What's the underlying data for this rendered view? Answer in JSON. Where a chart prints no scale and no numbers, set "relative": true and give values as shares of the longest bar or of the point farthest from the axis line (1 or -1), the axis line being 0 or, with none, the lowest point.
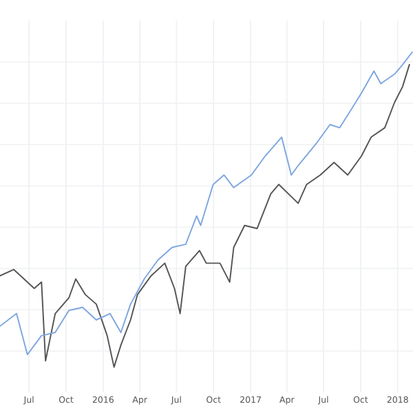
{
  "chart_data": {
    "type": "line",
    "relative": true,
    "grid": true,
    "legend": false,
    "tick_labels": "x",
    "xlim": [
      "2015-04-20",
      "2018-02-08"
    ],
    "xticks": [
      {
        "value": "2015-07-01",
        "label": "Jul"
      },
      {
        "value": "2015-10-01",
        "label": "Oct"
      },
      {
        "value": "2016-01-01",
        "label": "2016"
      },
      {
        "value": "2016-04-01",
        "label": "Apr"
      },
      {
        "value": "2016-07-01",
        "label": "Jul"
      },
      {
        "value": "2016-10-01",
        "label": "Oct"
      },
      {
        "value": "2017-01-01",
        "label": "2017"
      },
      {
        "value": "2017-04-01",
        "label": "Apr"
      },
      {
        "value": "2017-07-01",
        "label": "Jul"
      },
      {
        "value": "2017-10-01",
        "label": "Oct"
      },
      {
        "value": "2018-01-01",
        "label": "2018"
      }
    ],
    "series": [
      {
        "color": "#555555",
        "x": [
          "2015-04-20",
          "2015-05-24",
          "2015-07-14",
          "2015-08-01",
          "2015-08-11",
          "2015-09-04",
          "2015-10-08",
          "2015-10-25",
          "2015-11-18",
          "2015-12-15",
          "2016-01-11",
          "2016-01-28",
          "2016-02-14",
          "2016-03-09",
          "2016-03-26",
          "2016-04-29",
          "2016-06-02",
          "2016-06-26",
          "2016-07-10",
          "2016-07-24",
          "2016-08-27",
          "2016-09-13",
          "2016-10-17",
          "2016-11-10",
          "2016-11-20",
          "2016-12-17",
          "2017-01-17",
          "2017-02-20",
          "2017-03-12",
          "2017-04-29",
          "2017-05-20",
          "2017-06-23",
          "2017-07-27",
          "2017-08-30",
          "2017-10-03",
          "2017-10-27",
          "2017-11-30",
          "2017-12-24",
          "2018-01-13",
          "2018-01-30"
        ],
        "values": [
          0.29,
          0.31,
          0.25,
          0.27,
          0.02,
          0.17,
          0.22,
          0.28,
          0.23,
          0.2,
          0.1,
          0.0,
          0.07,
          0.15,
          0.23,
          0.29,
          0.33,
          0.25,
          0.17,
          0.32,
          0.37,
          0.33,
          0.33,
          0.27,
          0.38,
          0.45,
          0.44,
          0.55,
          0.58,
          0.52,
          0.58,
          0.61,
          0.65,
          0.61,
          0.67,
          0.73,
          0.76,
          0.84,
          0.89,
          0.96
        ]
      },
      {
        "color": "#7ea6e0",
        "x": [
          "2015-04-20",
          "2015-05-31",
          "2015-06-27",
          "2015-08-01",
          "2015-09-04",
          "2015-10-08",
          "2015-11-11",
          "2015-12-15",
          "2016-01-18",
          "2016-02-14",
          "2016-03-09",
          "2016-04-12",
          "2016-05-16",
          "2016-06-20",
          "2016-07-24",
          "2016-08-20",
          "2016-08-30",
          "2016-09-30",
          "2016-10-27",
          "2016-11-20",
          "2017-01-03",
          "2017-02-06",
          "2017-03-19",
          "2017-04-12",
          "2017-04-29",
          "2017-06-13",
          "2017-07-17",
          "2017-08-10",
          "2017-08-30",
          "2017-10-03",
          "2017-11-03",
          "2017-11-20",
          "2017-12-24",
          "2018-01-13",
          "2018-02-06"
        ],
        "values": [
          0.13,
          0.17,
          0.04,
          0.1,
          0.11,
          0.18,
          0.19,
          0.15,
          0.17,
          0.11,
          0.2,
          0.28,
          0.34,
          0.38,
          0.39,
          0.48,
          0.45,
          0.58,
          0.61,
          0.57,
          0.61,
          0.67,
          0.73,
          0.61,
          0.64,
          0.71,
          0.77,
          0.76,
          0.8,
          0.87,
          0.94,
          0.9,
          0.93,
          0.96,
          1.0
        ]
      }
    ]
  }
}
